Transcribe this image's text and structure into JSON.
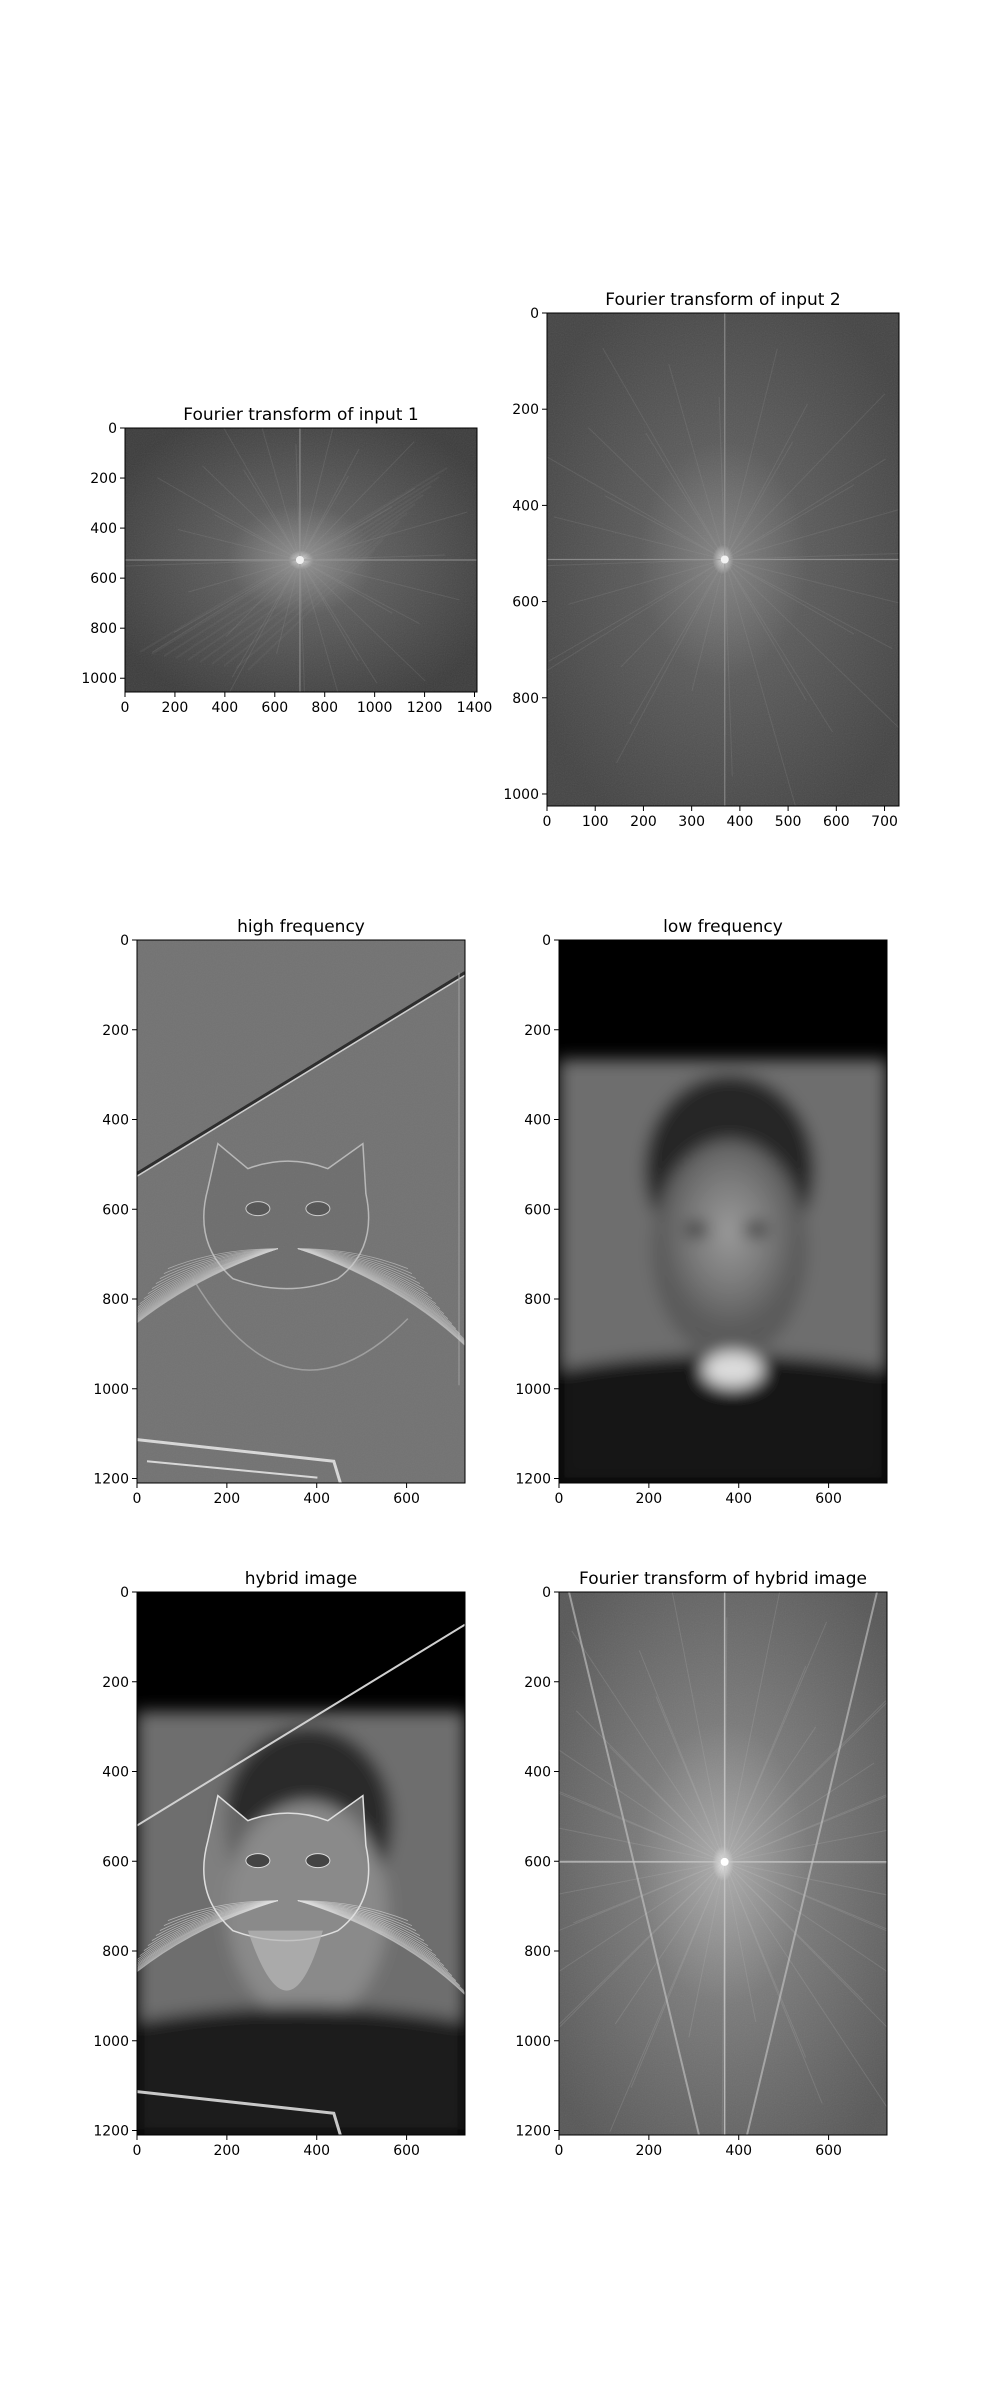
{
  "figure": {
    "background": "#ffffff"
  },
  "chart_data": [
    {
      "type": "heatmap",
      "title": "Fourier transform of input 1",
      "content": "fourier-spectrum",
      "xlim": [
        0,
        1410
      ],
      "ylim": [
        1055,
        0
      ],
      "xticks": [
        0,
        200,
        400,
        600,
        800,
        1000,
        1200,
        1400
      ],
      "yticks": [
        0,
        200,
        400,
        600,
        800,
        1000
      ],
      "colormap": "gray"
    },
    {
      "type": "heatmap",
      "title": "Fourier transform of input 2",
      "content": "fourier-spectrum",
      "xlim": [
        0,
        730
      ],
      "ylim": [
        1025,
        0
      ],
      "xticks": [
        0,
        100,
        200,
        300,
        400,
        500,
        600,
        700
      ],
      "yticks": [
        0,
        200,
        400,
        600,
        800,
        1000
      ],
      "colormap": "gray"
    },
    {
      "type": "heatmap",
      "title": "high frequency",
      "content": "cat-high-pass",
      "xlim": [
        0,
        730
      ],
      "ylim": [
        1210,
        0
      ],
      "xticks": [
        0,
        200,
        400,
        600
      ],
      "yticks": [
        0,
        200,
        400,
        600,
        800,
        1000,
        1200
      ],
      "colormap": "gray"
    },
    {
      "type": "heatmap",
      "title": "low frequency",
      "content": "face-low-pass",
      "xlim": [
        0,
        730
      ],
      "ylim": [
        1210,
        0
      ],
      "xticks": [
        0,
        200,
        400,
        600
      ],
      "yticks": [
        0,
        200,
        400,
        600,
        800,
        1000,
        1200
      ],
      "colormap": "gray"
    },
    {
      "type": "heatmap",
      "title": "hybrid image",
      "content": "hybrid-cat-face",
      "xlim": [
        0,
        730
      ],
      "ylim": [
        1210,
        0
      ],
      "xticks": [
        0,
        200,
        400,
        600
      ],
      "yticks": [
        0,
        200,
        400,
        600,
        800,
        1000,
        1200
      ],
      "colormap": "gray"
    },
    {
      "type": "heatmap",
      "title": "Fourier transform of hybrid image",
      "content": "fourier-spectrum-hybrid",
      "xlim": [
        0,
        730
      ],
      "ylim": [
        1210,
        0
      ],
      "xticks": [
        0,
        200,
        400,
        600
      ],
      "yticks": [
        0,
        200,
        400,
        600,
        800,
        1000,
        1200
      ],
      "colormap": "gray"
    }
  ]
}
